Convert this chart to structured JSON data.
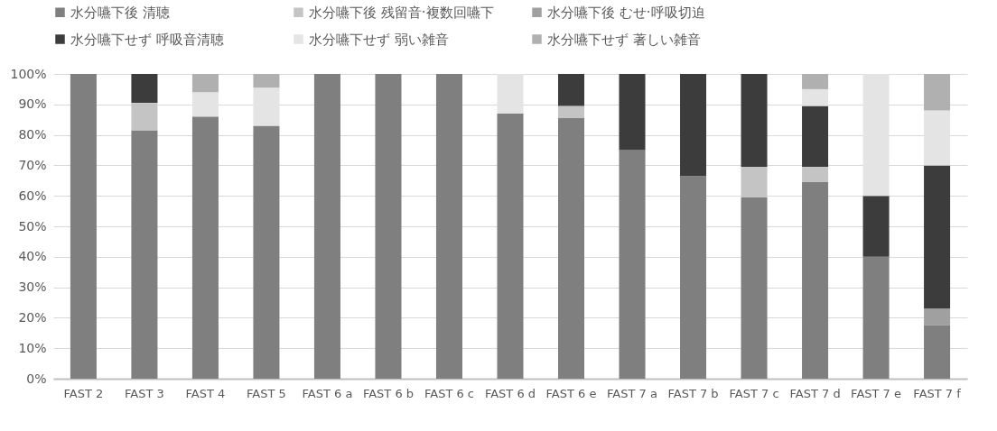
{
  "chart_data": {
    "type": "bar",
    "stacked": true,
    "legend": "top",
    "grid": "y",
    "categories": [
      "FAST 2",
      "FAST 3",
      "FAST 4",
      "FAST 5",
      "FAST 6 a",
      "FAST 6 b",
      "FAST 6 c",
      "FAST 6 d",
      "FAST 6 e",
      "FAST 7 a",
      "FAST 7 b",
      "FAST 7 c",
      "FAST 7 d",
      "FAST 7 e",
      "FAST 7 f"
    ],
    "ylim": [
      0,
      100
    ],
    "yticks": [
      {
        "value": 0,
        "label": "0%"
      },
      {
        "value": 10,
        "label": "10%"
      },
      {
        "value": 20,
        "label": "20%"
      },
      {
        "value": 30,
        "label": "30%"
      },
      {
        "value": 40,
        "label": "40%"
      },
      {
        "value": 50,
        "label": "50%"
      },
      {
        "value": 60,
        "label": "60%"
      },
      {
        "value": 70,
        "label": "70%"
      },
      {
        "value": 80,
        "label": "80%"
      },
      {
        "value": 90,
        "label": "90%"
      },
      {
        "value": 100,
        "label": "100%"
      }
    ],
    "series": [
      {
        "name": "水分嚥下後 清聴",
        "color": "#7f7f7f",
        "values": [
          100,
          81.5,
          86,
          83,
          100,
          100,
          100,
          87,
          85.5,
          75,
          66.5,
          59.5,
          64.5,
          40,
          17.5
        ]
      },
      {
        "name": "水分嚥下後 残留音·複数回嚥下",
        "color": "#c4c4c4",
        "values": [
          0,
          9,
          0,
          0,
          0,
          0,
          0,
          0,
          4,
          0,
          0,
          10,
          5,
          0,
          0
        ]
      },
      {
        "name": "水分嚥下後 むせ·呼吸切迫",
        "color": "#a0a0a0",
        "values": [
          0,
          0,
          0,
          0,
          0,
          0,
          0,
          0,
          0,
          0,
          0,
          0,
          0,
          0,
          5.5
        ]
      },
      {
        "name": "水分嚥下せず 呼吸音清聴",
        "color": "#3c3c3c",
        "values": [
          0,
          9.5,
          0,
          0,
          0,
          0,
          0,
          0,
          10.5,
          25,
          33.5,
          30.5,
          20,
          20,
          47
        ]
      },
      {
        "name": "水分嚥下せず 弱い雑音",
        "color": "#e4e4e4",
        "values": [
          0,
          0,
          8,
          12.5,
          0,
          0,
          0,
          13,
          0,
          0,
          0,
          0,
          5.5,
          40,
          18
        ]
      },
      {
        "name": "水分嚥下せず 著しい雑音",
        "color": "#b0b0b0",
        "values": [
          0,
          0,
          6,
          4.5,
          0,
          0,
          0,
          0,
          0,
          0,
          0,
          0,
          5,
          0,
          12
        ]
      }
    ]
  }
}
